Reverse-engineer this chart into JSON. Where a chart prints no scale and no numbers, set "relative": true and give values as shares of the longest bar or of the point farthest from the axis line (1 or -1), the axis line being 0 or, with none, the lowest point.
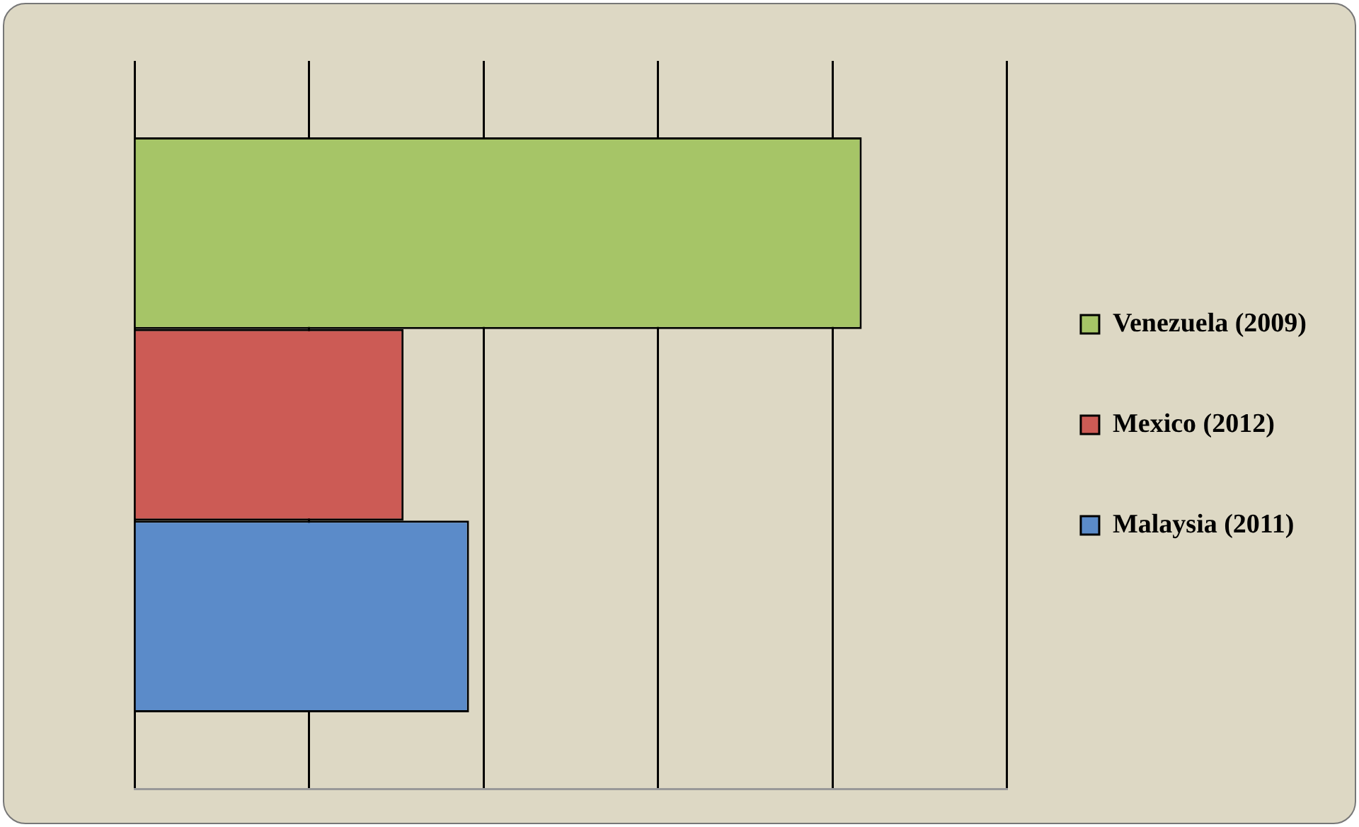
{
  "chart_data": {
    "type": "bar",
    "orientation": "horizontal",
    "relative": true,
    "grid": "x",
    "legend": "right",
    "categories": [
      null
    ],
    "series": [
      {
        "name": "Venezuela (2009)",
        "color": "#a6c567",
        "values": [
          1
        ]
      },
      {
        "name": "Mexico (2012)",
        "color": "#cc5b55",
        "values": [
          0.37
        ]
      },
      {
        "name": "Malaysia (2011)",
        "color": "#5b8bc9",
        "values": [
          0.46
        ]
      }
    ]
  }
}
